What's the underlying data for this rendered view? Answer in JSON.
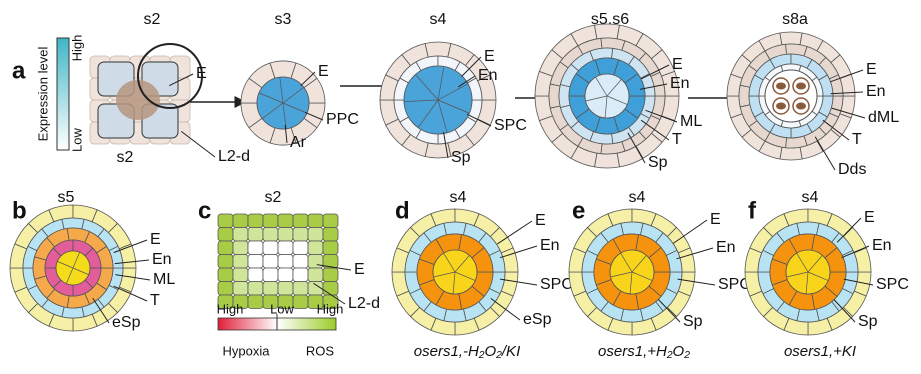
{
  "panel_a": {
    "letter": "a",
    "legend_title": "Expression level",
    "legend_high": "High",
    "legend_low": "Low",
    "stages": [
      {
        "stage": "s2",
        "sub": "s2",
        "labels": [
          "E",
          "L2-d"
        ]
      },
      {
        "stage": "s3",
        "labels": [
          "E",
          "PPC",
          "Ar"
        ]
      },
      {
        "stage": "s4",
        "labels": [
          "E",
          "En",
          "SPC",
          "Sp"
        ]
      },
      {
        "stage": "s5,s6",
        "labels": [
          "E",
          "En",
          "ML",
          "T",
          "Sp"
        ]
      },
      {
        "stage": "s8a",
        "labels": [
          "E",
          "En",
          "dML",
          "T",
          "Dds"
        ]
      }
    ]
  },
  "panel_b": {
    "letter": "b",
    "stage": "s5",
    "labels": [
      "E",
      "En",
      "ML",
      "T",
      "eSp"
    ]
  },
  "panel_c": {
    "letter": "c",
    "stage": "s2",
    "labels": [
      "E",
      "L2-d"
    ],
    "scale": {
      "left": "High",
      "mid": "Low",
      "right": "High",
      "left_caption": "Hypoxia",
      "right_caption": "ROS"
    }
  },
  "panel_d": {
    "letter": "d",
    "stage": "s4",
    "labels": [
      "E",
      "En",
      "SPC",
      "eSp"
    ],
    "caption": "osers1,-H₂O₂/KI"
  },
  "panel_e": {
    "letter": "e",
    "stage": "s4",
    "labels": [
      "E",
      "En",
      "SPC",
      "Sp"
    ],
    "caption": "osers1,+H₂O₂"
  },
  "panel_f": {
    "letter": "f",
    "stage": "s4",
    "labels": [
      "E",
      "En",
      "SPC",
      "Sp"
    ],
    "caption": "osers1,+KI"
  }
}
